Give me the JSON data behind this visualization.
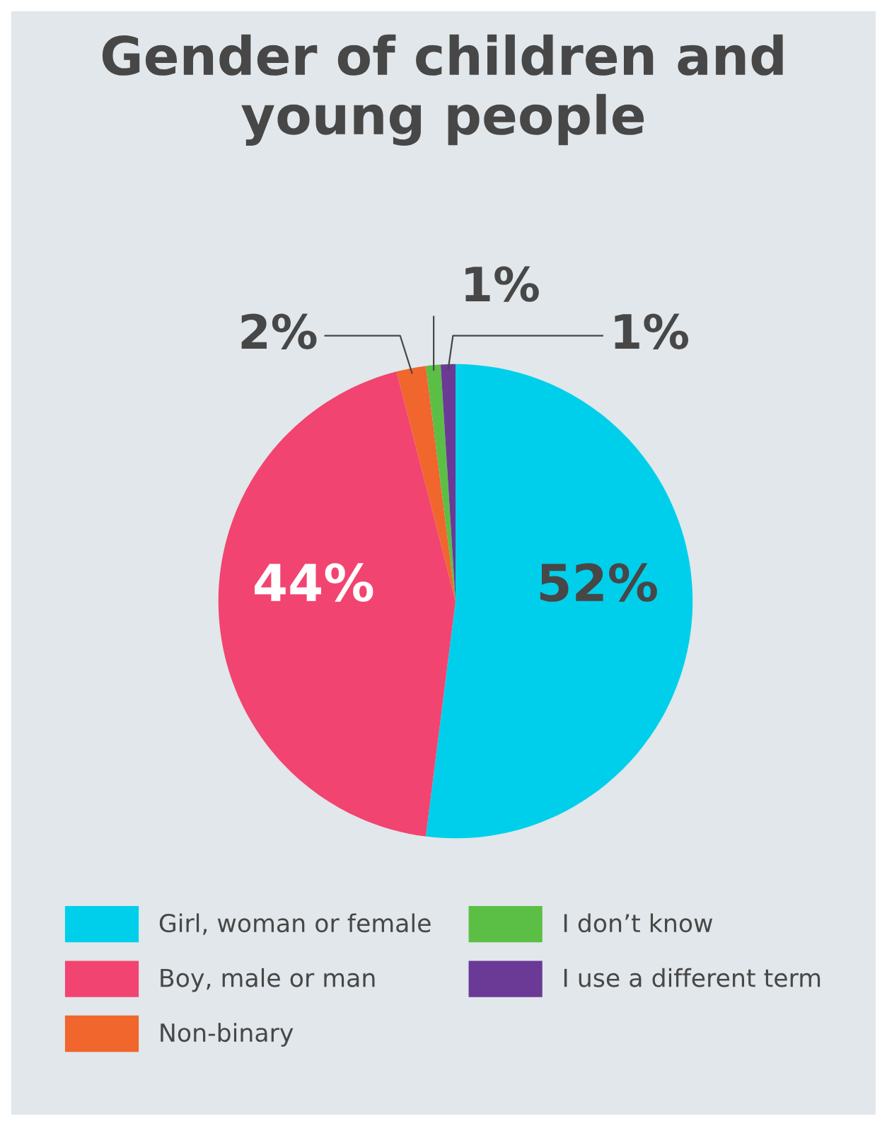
{
  "chart_data": {
    "type": "pie",
    "title": "Gender of children and\nyoung people",
    "categories": [
      "Girl, woman or female",
      "Boy, male or man",
      "Non-binary",
      "I don’t know",
      "I use a different term"
    ],
    "values": [
      52,
      44,
      2,
      1,
      1
    ],
    "colors": [
      "#00cfeb",
      "#f24470",
      "#f0662c",
      "#5cbf45",
      "#6a3a96"
    ],
    "data_labels": true,
    "value_labels": [
      "52%",
      "44%",
      "2%",
      "1%",
      "1%"
    ],
    "legend": "bottom"
  }
}
